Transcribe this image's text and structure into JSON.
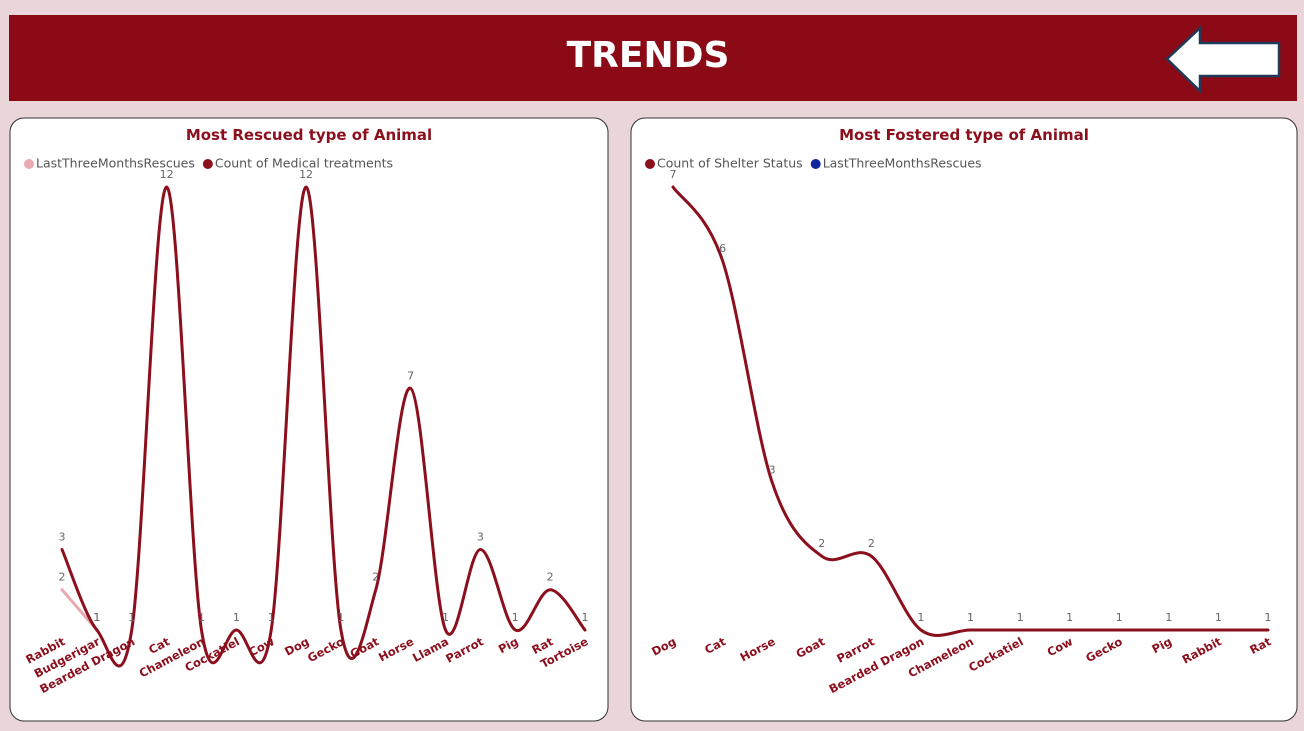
{
  "header": {
    "title": "TRENDS"
  },
  "chart_data": [
    {
      "type": "line",
      "title": "Most Rescued type of Animal",
      "categories": [
        "Rabbit",
        "Budgerigar",
        "Bearded Dragon",
        "Cat",
        "Chameleon",
        "Cockatiel",
        "Cow",
        "Dog",
        "Gecko",
        "Goat",
        "Horse",
        "Llama",
        "Parrot",
        "Pig",
        "Rat",
        "Tortoise"
      ],
      "series": [
        {
          "name": "LastThreeMonthsRescues",
          "color": "#e8a9b0",
          "values": [
            2,
            1,
            null,
            null,
            null,
            null,
            null,
            null,
            null,
            null,
            null,
            null,
            null,
            null,
            null,
            null
          ]
        },
        {
          "name": "Count of Medical treatments",
          "color": "#8b0f1c",
          "values": [
            3,
            1,
            1,
            12,
            1,
            1,
            1,
            12,
            1,
            2,
            7,
            1,
            3,
            1,
            2,
            1
          ]
        }
      ],
      "ylim": [
        1,
        12
      ],
      "legend": "top-left"
    },
    {
      "type": "line",
      "title": "Most Fostered type of Animal",
      "categories": [
        "Dog",
        "Cat",
        "Horse",
        "Goat",
        "Parrot",
        "Bearded Dragon",
        "Chameleon",
        "Cockatiel",
        "Cow",
        "Gecko",
        "Pig",
        "Rabbit",
        "Rat"
      ],
      "series": [
        {
          "name": "Count of Shelter Status",
          "color": "#8b0f1c",
          "values": [
            7,
            6,
            3,
            2,
            2,
            1,
            1,
            1,
            1,
            1,
            1,
            1,
            1
          ]
        },
        {
          "name": "LastThreeMonthsRescues",
          "color": "#12239e",
          "values": [
            null,
            null,
            null,
            null,
            null,
            null,
            null,
            null,
            null,
            null,
            null,
            null,
            null
          ]
        }
      ],
      "ylim": [
        1,
        7
      ],
      "legend": "top-left"
    }
  ]
}
